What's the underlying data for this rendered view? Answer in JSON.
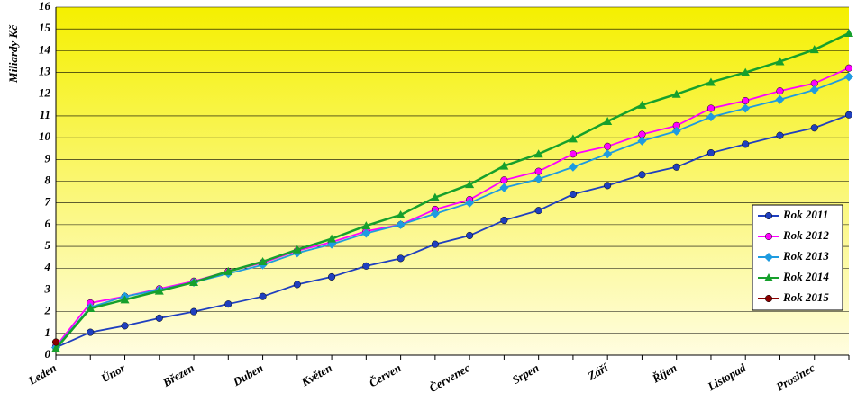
{
  "chart_data": {
    "type": "line",
    "y_label": "Miliardy Kč",
    "categories": [
      "Leden",
      null,
      "Únor",
      null,
      "Březen",
      null,
      "Duben",
      null,
      "Květen",
      null,
      "Červen",
      null,
      "Červenec",
      null,
      "Srpen",
      null,
      "Září",
      null,
      "Říjen",
      null,
      "Listopad",
      null,
      "Prosinec",
      null
    ],
    "ylim": [
      0,
      16
    ],
    "yticks": [
      0,
      1,
      2,
      3,
      4,
      5,
      6,
      7,
      8,
      9,
      10,
      11,
      12,
      13,
      14,
      15,
      16
    ],
    "grid": true,
    "legend": "right",
    "series": [
      {
        "name": "Rok 2011",
        "color": "#1f3fbf",
        "marker": "circle",
        "values": [
          0.35,
          1.05,
          1.35,
          1.7,
          2.0,
          2.35,
          2.7,
          3.25,
          3.6,
          4.1,
          4.45,
          5.1,
          5.5,
          6.2,
          6.65,
          7.4,
          7.8,
          8.3,
          8.65,
          9.3,
          9.7,
          10.1,
          10.45,
          11.05
        ]
      },
      {
        "name": "Rok 2012",
        "color": "#ff00ff",
        "marker": "circle",
        "values": [
          0.4,
          2.4,
          2.7,
          3.05,
          3.4,
          3.85,
          4.25,
          4.8,
          5.2,
          5.7,
          6.0,
          6.7,
          7.15,
          8.05,
          8.45,
          9.25,
          9.6,
          10.15,
          10.55,
          11.35,
          11.7,
          12.15,
          12.5,
          13.2
        ]
      },
      {
        "name": "Rok 2013",
        "color": "#1e9be0",
        "marker": "diamond",
        "values": [
          0.35,
          2.2,
          2.7,
          3.0,
          3.35,
          3.75,
          4.15,
          4.7,
          5.1,
          5.6,
          6.0,
          6.5,
          7.0,
          7.7,
          8.1,
          8.65,
          9.25,
          9.85,
          10.3,
          10.95,
          11.35,
          11.75,
          12.2,
          12.8
        ]
      },
      {
        "name": "Rok 2014",
        "color": "#16a02c",
        "marker": "triangle",
        "values": [
          0.3,
          2.15,
          2.55,
          2.95,
          3.35,
          3.85,
          4.3,
          4.85,
          5.35,
          5.95,
          6.45,
          7.25,
          7.85,
          8.7,
          9.25,
          9.95,
          10.75,
          11.5,
          12.0,
          12.55,
          13.0,
          13.5,
          14.05,
          14.8
        ]
      },
      {
        "name": "Rok 2015",
        "color": "#8b0000",
        "marker": "circle",
        "values": [
          0.6,
          null,
          null,
          null,
          null,
          null,
          null,
          null,
          null,
          null,
          null,
          null,
          null,
          null,
          null,
          null,
          null,
          null,
          null,
          null,
          null,
          null,
          null,
          null
        ]
      }
    ]
  }
}
